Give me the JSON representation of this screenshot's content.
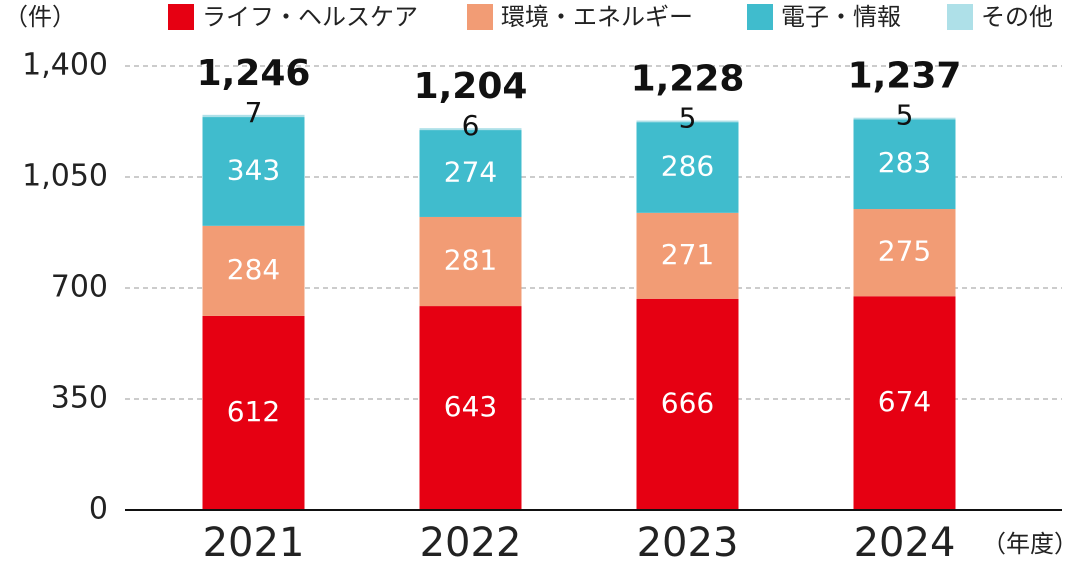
{
  "chart_data": {
    "type": "stacked-bar",
    "y_label": "（件）",
    "x_label": "（年度）",
    "categories": [
      "2021",
      "2022",
      "2023",
      "2024"
    ],
    "series": [
      {
        "name": "ライフ・ヘルスケア",
        "color": "#e60012",
        "values": [
          612,
          643,
          666,
          674
        ]
      },
      {
        "name": "環境・エネルギー",
        "color": "#f29c75",
        "values": [
          284,
          281,
          271,
          275
        ]
      },
      {
        "name": "電子・情報",
        "color": "#40bccd",
        "values": [
          343,
          274,
          286,
          283
        ]
      },
      {
        "name": "その他",
        "color": "#aee0e8",
        "values": [
          7,
          6,
          5,
          5
        ]
      }
    ],
    "totals": {
      "values": [
        1246,
        1204,
        1228,
        1237
      ],
      "value_labels": [
        "1,246",
        "1,204",
        "1,228",
        "1,237"
      ]
    },
    "ylim": [
      0,
      1400
    ],
    "yticks": [
      0,
      350,
      700,
      {
        "value": 1050,
        "label": "1,050"
      },
      {
        "value": 1400,
        "label": "1,400"
      }
    ],
    "grid": true
  }
}
